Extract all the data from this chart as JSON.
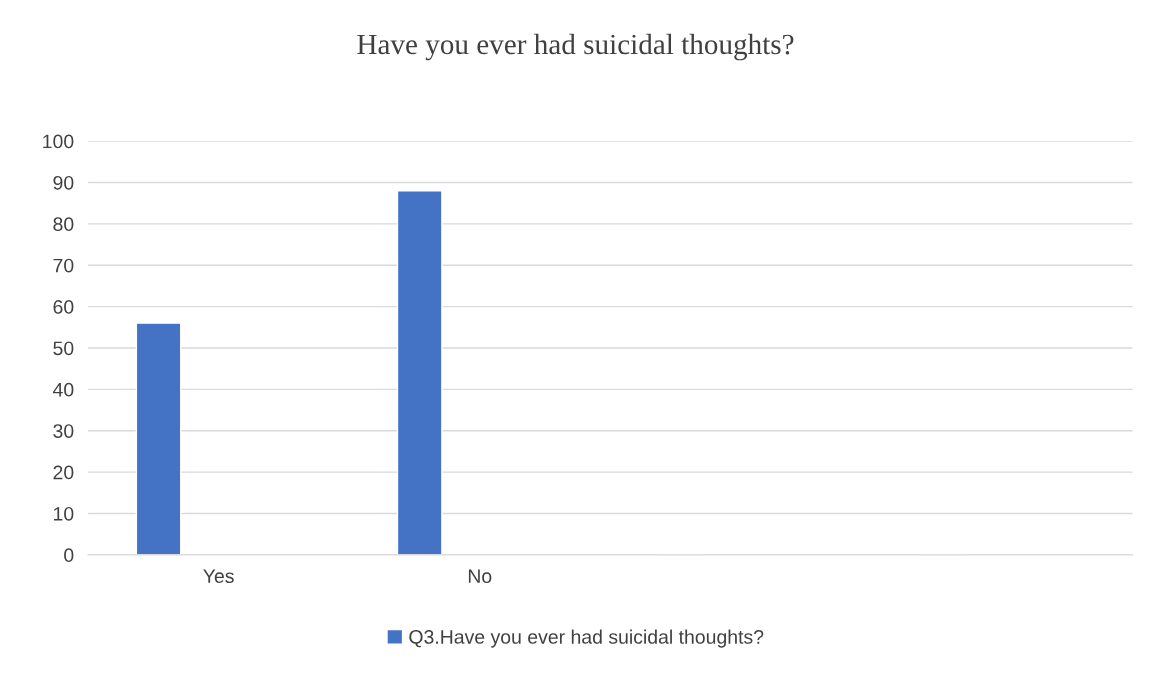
{
  "chart_data": {
    "type": "bar",
    "title": "Have you ever had suicidal thoughts?",
    "categories": [
      "Yes",
      "No",
      null,
      null
    ],
    "series": [
      {
        "name": "Q3.Have you ever had suicidal thoughts?",
        "color": "#4472c4",
        "values": [
          56,
          88,
          null,
          null
        ]
      }
    ],
    "ylim": [
      0,
      100
    ],
    "yticks": [
      0,
      10,
      20,
      30,
      40,
      50,
      60,
      70,
      80,
      90,
      100
    ],
    "grid": "y",
    "legend": "bottom"
  }
}
